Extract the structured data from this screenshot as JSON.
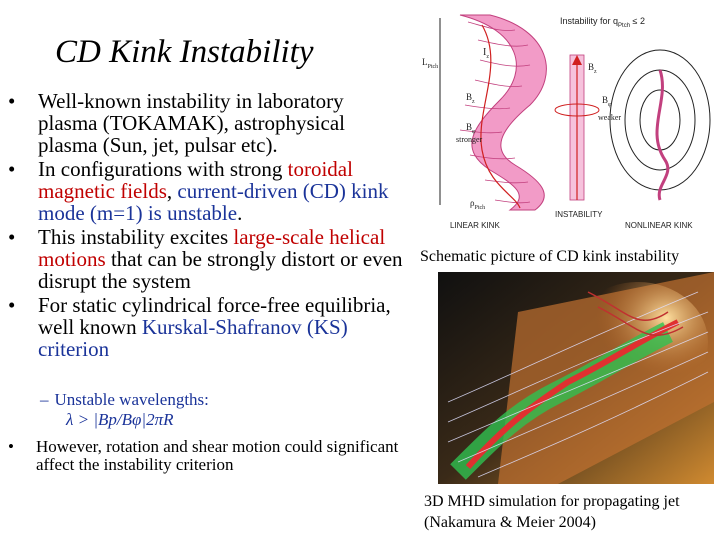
{
  "slide": {
    "title": "CD Kink Instability",
    "bullets": [
      {
        "pre": "Well-known instability in laboratory plasma (TOKAMAK), astrophysical plasma (Sun, jet, pulsar etc).",
        "hl1": "",
        "mid": "",
        "hl2": "",
        "post": ""
      },
      {
        "pre": "In configurations with strong ",
        "hl1": "toroidal magnetic fields",
        "mid": ", ",
        "hl2": "current-driven (CD) kink mode (m=1) is unstable",
        "post": "."
      },
      {
        "pre": "This instability excites ",
        "hl1": "large-scale helical motions",
        "mid": " that can be strongly distort or even disrupt the system",
        "hl2": "",
        "post": ""
      },
      {
        "pre": "For static cylindrical force-free equilibria, well known ",
        "hl1": "",
        "mid": "",
        "hl2": "Kurskal-Shafranov (KS) criterion",
        "post": ""
      }
    ],
    "sub_bullet": "Unstable wavelengths:",
    "formula": "λ > |Bp/Bφ|2πR",
    "small_bullet": "However, rotation and shear motion could significant affect the instability criterion",
    "figure1": {
      "caption": "Schematic picture of CD kink instability",
      "label_top": "Instability for q",
      "label_top_sub": "Ptch",
      "label_top_end": " ≤ 2",
      "label_L": "L",
      "label_L_sub": "Ptch",
      "label_Iz": "I",
      "label_Iz_sub": "z",
      "label_Bz": "B",
      "label_Bz_sub": "z",
      "label_Bphi": "B",
      "label_Bphi_sub": "φ",
      "label_stronger": "stronger",
      "label_weaker": "weaker",
      "label_rho": "ρ",
      "label_rho_sub": "Ptch",
      "label_linear": "LINEAR KINK",
      "label_instability": "INSTABILITY",
      "label_nonlinear": "NONLINEAR KINK"
    },
    "figure2": {
      "caption_line1": "3D MHD simulation for propagating jet",
      "caption_line2": "(Nakamura & Meier 2004)"
    }
  },
  "colors": {
    "red_highlight": "#c00000",
    "blue_highlight": "#1a3399",
    "pink_tube": "#f29bc7"
  }
}
